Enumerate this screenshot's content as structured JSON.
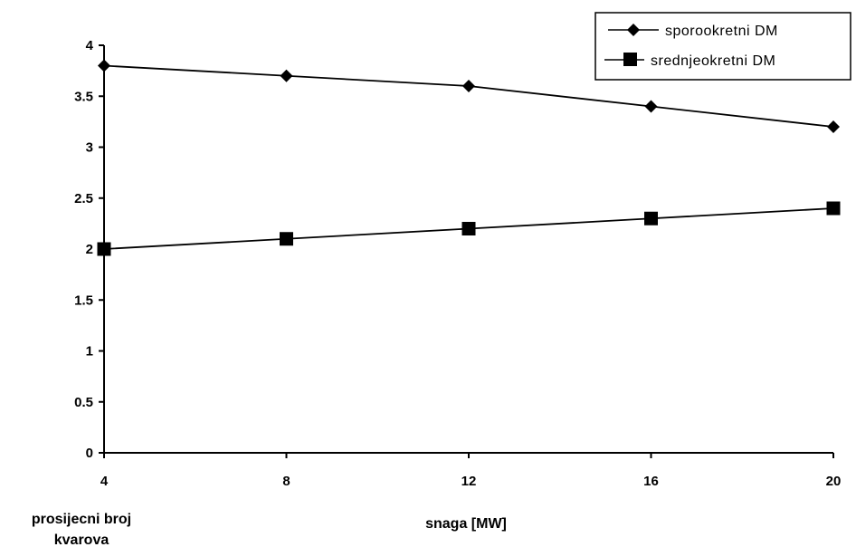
{
  "chart_data": {
    "type": "line",
    "x": [
      4,
      8,
      12,
      16,
      20
    ],
    "series": [
      {
        "name": "sporookretni DM",
        "values": [
          3.8,
          3.7,
          3.6,
          3.4,
          3.2
        ],
        "marker": "diamond",
        "color": "#000000"
      },
      {
        "name": "srednjeokretni DM",
        "values": [
          2.0,
          2.1,
          2.2,
          2.3,
          2.4
        ],
        "marker": "square",
        "color": "#000000"
      }
    ],
    "xlabel": "snaga [MW]",
    "ylabel_lines": [
      "prosijecni broj",
      "kvarova"
    ],
    "xticks": [
      "4",
      "8",
      "12",
      "16",
      "20"
    ],
    "yticks": [
      "0",
      "0.5",
      "1",
      "1.5",
      "2",
      "2.5",
      "3",
      "3.5",
      "4"
    ],
    "xlim": [
      4,
      20
    ],
    "ylim": [
      0,
      4
    ],
    "grid": false,
    "legend_position": "top-right"
  }
}
